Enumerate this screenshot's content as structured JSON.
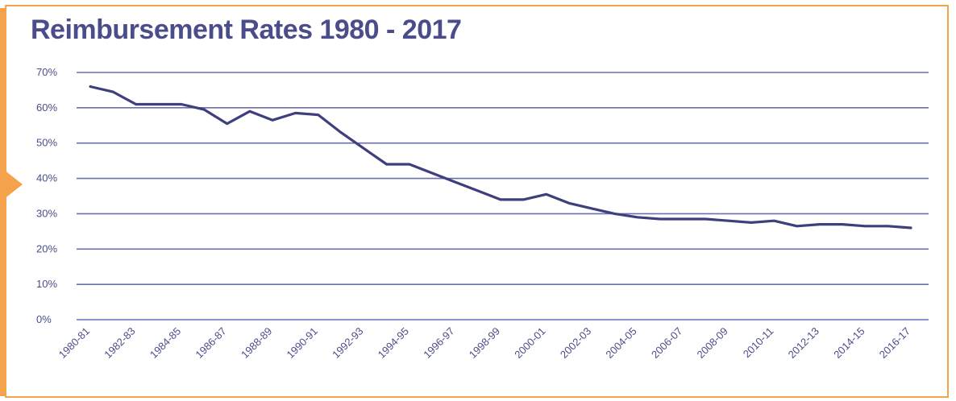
{
  "title": "Reimbursement Rates 1980 - 2017",
  "colors": {
    "accent": "#f4a24b",
    "line": "#3e3f7c",
    "grid": "#6a6fb0",
    "text": "#4b4d8a"
  },
  "chart_data": {
    "type": "line",
    "title": "Reimbursement Rates 1980 - 2017",
    "xlabel": "",
    "ylabel": "",
    "ylim": [
      0,
      70
    ],
    "yticks": [
      "0%",
      "10%",
      "20%",
      "30%",
      "40%",
      "50%",
      "60%",
      "70%"
    ],
    "grid": true,
    "x": [
      "1980-81",
      "1981-82",
      "1982-83",
      "1983-84",
      "1984-85",
      "1985-86",
      "1986-87",
      "1987-88",
      "1988-89",
      "1989-90",
      "1990-91",
      "1991-92",
      "1992-93",
      "1993-94",
      "1994-95",
      "1995-96",
      "1996-97",
      "1997-98",
      "1998-99",
      "1999-00",
      "2000-01",
      "2001-02",
      "2002-03",
      "2003-04",
      "2004-05",
      "2005-06",
      "2006-07",
      "2007-08",
      "2008-09",
      "2009-10",
      "2010-11",
      "2011-12",
      "2012-13",
      "2013-14",
      "2014-15",
      "2015-16",
      "2016-17"
    ],
    "xtick_labels": [
      "1980-81",
      "1982-83",
      "1984-85",
      "1986-87",
      "1988-89",
      "1990-91",
      "1992-93",
      "1994-95",
      "1996-97",
      "1998-99",
      "2000-01",
      "2002-03",
      "2004-05",
      "2006-07",
      "2008-09",
      "2010-11",
      "2012-13",
      "2014-15",
      "2016-17"
    ],
    "series": [
      {
        "values": [
          66,
          64.5,
          61,
          61,
          61,
          59.5,
          55.5,
          59,
          56.5,
          58.5,
          58,
          53,
          48.5,
          44,
          44,
          41.5,
          39,
          36.5,
          34,
          34,
          35.5,
          33,
          31.5,
          30,
          29,
          28.5,
          28.5,
          28.5,
          28,
          27.5,
          28,
          26.5,
          27,
          27,
          26.5,
          26.5,
          26
        ]
      }
    ]
  }
}
